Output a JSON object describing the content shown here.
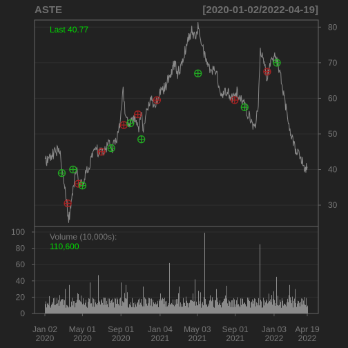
{
  "header": {
    "symbol": "ASTE",
    "range": "[2020-01-02/2022-04-19]"
  },
  "price_panel": {
    "last_label": "Last 40.77"
  },
  "volume_panel": {
    "label": "Volume (10,000s):",
    "value": "110,600"
  },
  "colors": {
    "background": "#222222",
    "panel_border": "#666666",
    "grid": "#2f2f2f",
    "price_line": "#8a8a8a",
    "volume_bar": "#8a8a8a",
    "accent_green": "#00dd00",
    "buy_marker": "#22aa22",
    "sell_marker": "#aa2222",
    "axis_text": "#777777"
  },
  "chart_data": [
    {
      "type": "line",
      "name": "price",
      "ylim": [
        24,
        82
      ],
      "yticks": [
        30,
        40,
        50,
        60,
        70,
        80
      ],
      "x_range": [
        "2020-01-02",
        "2022-04-19"
      ],
      "series": [
        {
          "points": [
            [
              "2020-01-02",
              42
            ],
            [
              "2020-01-20",
              43.5
            ],
            [
              "2020-02-10",
              45.5
            ],
            [
              "2020-02-20",
              44
            ],
            [
              "2020-02-28",
              39
            ],
            [
              "2020-03-10",
              32
            ],
            [
              "2020-03-18",
              26
            ],
            [
              "2020-03-25",
              29
            ],
            [
              "2020-04-01",
              34
            ],
            [
              "2020-04-10",
              40
            ],
            [
              "2020-04-20",
              37
            ],
            [
              "2020-05-01",
              35
            ],
            [
              "2020-05-12",
              39
            ],
            [
              "2020-05-25",
              41
            ],
            [
              "2020-06-08",
              47
            ],
            [
              "2020-06-20",
              45
            ],
            [
              "2020-07-01",
              45
            ],
            [
              "2020-07-15",
              46
            ],
            [
              "2020-07-28",
              48
            ],
            [
              "2020-08-05",
              46
            ],
            [
              "2020-08-15",
              48
            ],
            [
              "2020-08-28",
              52
            ],
            [
              "2020-09-01",
              55
            ],
            [
              "2020-09-08",
              62
            ],
            [
              "2020-09-15",
              55
            ],
            [
              "2020-09-25",
              52
            ],
            [
              "2020-10-05",
              54
            ],
            [
              "2020-10-15",
              55
            ],
            [
              "2020-10-28",
              52
            ],
            [
              "2020-11-05",
              57
            ],
            [
              "2020-11-10",
              50
            ],
            [
              "2020-11-20",
              56
            ],
            [
              "2020-12-05",
              60
            ],
            [
              "2020-12-20",
              58
            ],
            [
              "2021-01-05",
              62
            ],
            [
              "2021-01-20",
              63
            ],
            [
              "2021-02-05",
              67
            ],
            [
              "2021-02-20",
              70
            ],
            [
              "2021-03-01",
              67
            ],
            [
              "2021-03-15",
              70
            ],
            [
              "2021-04-01",
              76
            ],
            [
              "2021-04-15",
              79
            ],
            [
              "2021-04-25",
              77
            ],
            [
              "2021-05-05",
              80
            ],
            [
              "2021-05-15",
              76
            ],
            [
              "2021-05-20",
              74
            ],
            [
              "2021-06-01",
              70
            ],
            [
              "2021-06-15",
              67
            ],
            [
              "2021-06-25",
              68
            ],
            [
              "2021-07-05",
              66
            ],
            [
              "2021-07-20",
              61
            ],
            [
              "2021-08-05",
              62
            ],
            [
              "2021-08-20",
              60
            ],
            [
              "2021-09-05",
              62
            ],
            [
              "2021-09-20",
              60
            ],
            [
              "2021-10-05",
              57
            ],
            [
              "2021-10-20",
              54
            ],
            [
              "2021-11-01",
              52
            ],
            [
              "2021-11-12",
              56
            ],
            [
              "2021-11-20",
              73
            ],
            [
              "2021-12-01",
              70
            ],
            [
              "2021-12-10",
              66
            ],
            [
              "2021-12-20",
              69
            ],
            [
              "2022-01-05",
              72
            ],
            [
              "2022-01-12",
              71
            ],
            [
              "2022-01-20",
              68
            ],
            [
              "2022-02-01",
              62
            ],
            [
              "2022-02-15",
              55
            ],
            [
              "2022-03-01",
              49
            ],
            [
              "2022-03-15",
              45
            ],
            [
              "2022-03-28",
              44
            ],
            [
              "2022-04-10",
              40
            ],
            [
              "2022-04-19",
              40.77
            ]
          ]
        }
      ],
      "markers": [
        {
          "date": "2020-02-25",
          "value": 39,
          "kind": "buy"
        },
        {
          "date": "2020-03-15",
          "value": 30.5,
          "kind": "sell"
        },
        {
          "date": "2020-04-01",
          "value": 40,
          "kind": "buy"
        },
        {
          "date": "2020-04-18",
          "value": 36,
          "kind": "sell"
        },
        {
          "date": "2020-05-01",
          "value": 35.5,
          "kind": "buy"
        },
        {
          "date": "2020-07-01",
          "value": 45,
          "kind": "sell"
        },
        {
          "date": "2020-08-01",
          "value": 46,
          "kind": "buy"
        },
        {
          "date": "2020-09-10",
          "value": 52.5,
          "kind": "sell"
        },
        {
          "date": "2020-10-01",
          "value": 53,
          "kind": "buy"
        },
        {
          "date": "2020-10-25",
          "value": 55.5,
          "kind": "sell"
        },
        {
          "date": "2020-11-05",
          "value": 48.5,
          "kind": "buy"
        },
        {
          "date": "2020-12-25",
          "value": 59.5,
          "kind": "sell"
        },
        {
          "date": "2021-05-05",
          "value": 67,
          "kind": "buy"
        },
        {
          "date": "2021-08-30",
          "value": 59.5,
          "kind": "sell"
        },
        {
          "date": "2021-10-01",
          "value": 57.5,
          "kind": "buy"
        },
        {
          "date": "2021-12-12",
          "value": 67.5,
          "kind": "sell"
        },
        {
          "date": "2022-01-12",
          "value": 70,
          "kind": "buy"
        }
      ]
    },
    {
      "type": "bar",
      "name": "volume",
      "ylim": [
        0,
        100
      ],
      "yticks": [
        0,
        20,
        40,
        60,
        80,
        100
      ],
      "x_range": [
        "2020-01-02",
        "2022-04-19"
      ],
      "baseline_range": [
        7,
        20
      ],
      "spikes": [
        [
          "2020-03-05",
          30
        ],
        [
          "2020-03-20",
          35
        ],
        [
          "2020-04-15",
          25
        ],
        [
          "2020-05-25",
          38
        ],
        [
          "2020-06-20",
          47
        ],
        [
          "2020-09-01",
          38
        ],
        [
          "2020-09-15",
          35
        ],
        [
          "2020-11-10",
          33
        ],
        [
          "2021-02-01",
          62
        ],
        [
          "2021-03-05",
          33
        ],
        [
          "2021-04-25",
          42
        ],
        [
          "2021-05-26",
          99
        ],
        [
          "2021-07-01",
          30
        ],
        [
          "2021-08-05",
          34
        ],
        [
          "2021-11-18",
          85
        ],
        [
          "2022-01-10",
          45
        ],
        [
          "2022-02-20",
          35
        ],
        [
          "2022-03-10",
          30
        ]
      ]
    }
  ],
  "x_axis": {
    "ticks": [
      {
        "date": "2020-01-02",
        "line1": "Jan 02",
        "line2": "2020"
      },
      {
        "date": "2020-05-01",
        "line1": "May 01",
        "line2": "2020"
      },
      {
        "date": "2020-09-01",
        "line1": "Sep 01",
        "line2": "2020"
      },
      {
        "date": "2021-01-04",
        "line1": "Jan 04",
        "line2": "2021"
      },
      {
        "date": "2021-05-03",
        "line1": "May 03",
        "line2": "2021"
      },
      {
        "date": "2021-09-01",
        "line1": "Sep 01",
        "line2": "2021"
      },
      {
        "date": "2022-01-03",
        "line1": "Jan 03",
        "line2": "2022"
      },
      {
        "date": "2022-04-19",
        "line1": "Apr 19",
        "line2": "2022"
      }
    ]
  }
}
